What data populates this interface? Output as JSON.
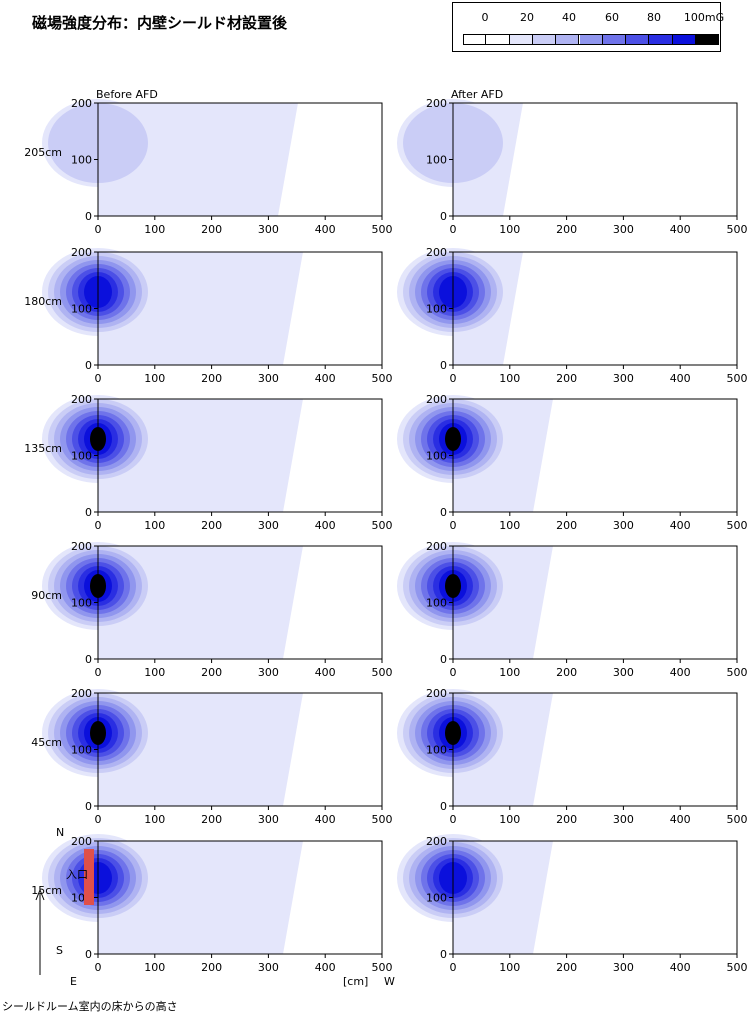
{
  "title": "磁場強度分布：内壁シールド材設置後",
  "legend": {
    "labels": [
      "0",
      "20",
      "40",
      "60",
      "80",
      "100mG"
    ],
    "colors": [
      "#ffffff",
      "#ffffff",
      "#e4e6fb",
      "#cacdf6",
      "#afb3f2",
      "#9096ee",
      "#6f73ea",
      "#4c50e6",
      "#2a2ee2",
      "#0b10dc",
      "#000000"
    ]
  },
  "columns": [
    "Before AFD",
    "After AFD"
  ],
  "rows": [
    "205cm",
    "180cm",
    "135cm",
    "90cm",
    "45cm",
    "15cm"
  ],
  "axis": {
    "x_ticks": [
      "0",
      "100",
      "200",
      "300",
      "400",
      "500"
    ],
    "y_ticks": [
      "0",
      "100",
      "200"
    ],
    "x_unit": "[cm]",
    "west": "W",
    "east": "E",
    "north": "N",
    "south": "S",
    "entrance": "入口"
  },
  "footnote": "シールドルーム室内の床からの高さ",
  "chart_data": {
    "type": "heatmap",
    "x_range": [
      0,
      500
    ],
    "y_range": [
      0,
      200
    ],
    "unit": "mG",
    "levels": [
      0,
      10,
      20,
      30,
      40,
      50,
      60,
      70,
      80,
      90,
      100
    ],
    "panels": [
      {
        "row": "205cm",
        "column": "Before AFD",
        "source_peak_mG": 15
      },
      {
        "row": "205cm",
        "column": "After AFD",
        "source_peak_mG": 15
      },
      {
        "row": "180cm",
        "column": "Before AFD",
        "source_peak_mG": 75
      },
      {
        "row": "180cm",
        "column": "After AFD",
        "source_peak_mG": 75
      },
      {
        "row": "135cm",
        "column": "Before AFD",
        "source_peak_mG": 100
      },
      {
        "row": "135cm",
        "column": "After AFD",
        "source_peak_mG": 100
      },
      {
        "row": "90cm",
        "column": "Before AFD",
        "source_peak_mG": 100
      },
      {
        "row": "90cm",
        "column": "After AFD",
        "source_peak_mG": 100
      },
      {
        "row": "45cm",
        "column": "Before AFD",
        "source_peak_mG": 100
      },
      {
        "row": "45cm",
        "column": "After AFD",
        "source_peak_mG": 100
      },
      {
        "row": "15cm",
        "column": "Before AFD",
        "source_peak_mG": 80
      },
      {
        "row": "15cm",
        "column": "After AFD",
        "source_peak_mG": 80
      }
    ]
  }
}
